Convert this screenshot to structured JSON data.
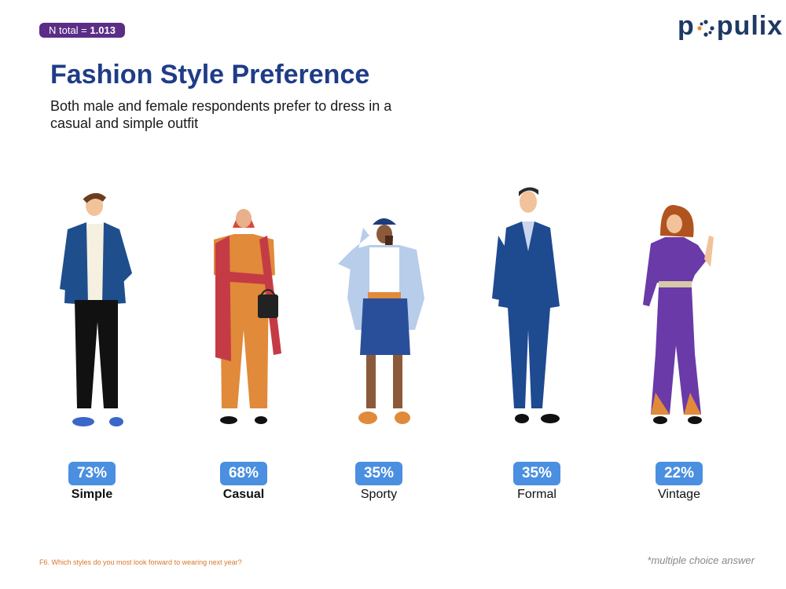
{
  "header": {
    "badge_label": "N total = ",
    "badge_value": "1.013",
    "logo_left": "p",
    "logo_right": "pulix"
  },
  "title": "Fashion Style Preference",
  "subtitle": "Both male and female respondents prefer to dress in a casual and simple outfit",
  "chart_data": {
    "type": "bar",
    "categories": [
      "Simple",
      "Casual",
      "Sporty",
      "Formal",
      "Vintage"
    ],
    "values": [
      73,
      68,
      35,
      35,
      22
    ],
    "value_labels": [
      "73%",
      "68%",
      "35%",
      "35%",
      "22%"
    ],
    "unit": "%"
  },
  "footnote": "F6. Which styles do you most look forward to wearing next year?",
  "note": "*multiple choice answer",
  "colors": {
    "accent": "#4a8fe0",
    "badge": "#5b2d86",
    "title": "#1f3c88",
    "footnote": "#d9772b"
  },
  "icons": [
    "simple-outfit-person-icon",
    "casual-outfit-person-icon",
    "sporty-outfit-person-icon",
    "formal-outfit-person-icon",
    "vintage-outfit-person-icon"
  ]
}
